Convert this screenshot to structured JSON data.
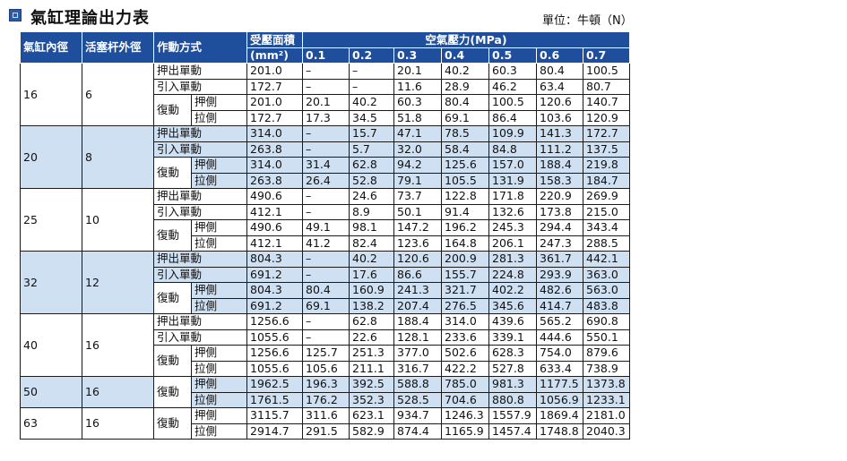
{
  "title": "氣缸理論出力表",
  "unit": "單位：牛頓（N）",
  "headers": {
    "bore": "氣缸內徑",
    "rod": "活塞杆外徑",
    "action": "作動方式",
    "area": "受壓面積",
    "area_unit": "(mm²)",
    "pressure": "空氣壓力(MPa)",
    "pressures": [
      "0.1",
      "0.2",
      "0.3",
      "0.4",
      "0.5",
      "0.6",
      "0.7"
    ]
  },
  "labels": {
    "push": "押出單動",
    "pull": "引入單動",
    "double": "復動",
    "push_side": "押側",
    "pull_side": "拉側"
  },
  "groups": [
    {
      "bore": "16",
      "rod": "6",
      "shade": false,
      "rows": [
        {
          "type": "push",
          "area": "201.0",
          "values": [
            "–",
            "–",
            "20.1",
            "40.2",
            "60.3",
            "80.4",
            "100.5"
          ]
        },
        {
          "type": "pull",
          "area": "172.7",
          "values": [
            "–",
            "–",
            "11.6",
            "28.9",
            "46.2",
            "63.4",
            "80.7"
          ]
        },
        {
          "type": "push_side",
          "area": "201.0",
          "values": [
            "20.1",
            "40.2",
            "60.3",
            "80.4",
            "100.5",
            "120.6",
            "140.7"
          ]
        },
        {
          "type": "pull_side",
          "area": "172.7",
          "values": [
            "17.3",
            "34.5",
            "51.8",
            "69.1",
            "86.4",
            "103.6",
            "120.9"
          ]
        }
      ]
    },
    {
      "bore": "20",
      "rod": "8",
      "shade": true,
      "rows": [
        {
          "type": "push",
          "area": "314.0",
          "values": [
            "–",
            "15.7",
            "47.1",
            "78.5",
            "109.9",
            "141.3",
            "172.7"
          ]
        },
        {
          "type": "pull",
          "area": "263.8",
          "values": [
            "–",
            "5.7",
            "32.0",
            "58.4",
            "84.8",
            "111.2",
            "137.5"
          ]
        },
        {
          "type": "push_side",
          "area": "314.0",
          "values": [
            "31.4",
            "62.8",
            "94.2",
            "125.6",
            "157.0",
            "188.4",
            "219.8"
          ]
        },
        {
          "type": "pull_side",
          "area": "263.8",
          "values": [
            "26.4",
            "52.8",
            "79.1",
            "105.5",
            "131.9",
            "158.3",
            "184.7"
          ]
        }
      ]
    },
    {
      "bore": "25",
      "rod": "10",
      "shade": false,
      "rows": [
        {
          "type": "push",
          "area": "490.6",
          "values": [
            "–",
            "24.6",
            "73.7",
            "122.8",
            "171.8",
            "220.9",
            "269.9"
          ]
        },
        {
          "type": "pull",
          "area": "412.1",
          "values": [
            "–",
            "8.9",
            "50.1",
            "91.4",
            "132.6",
            "173.8",
            "215.0"
          ]
        },
        {
          "type": "push_side",
          "area": "490.6",
          "values": [
            "49.1",
            "98.1",
            "147.2",
            "196.2",
            "245.3",
            "294.4",
            "343.4"
          ]
        },
        {
          "type": "pull_side",
          "area": "412.1",
          "values": [
            "41.2",
            "82.4",
            "123.6",
            "164.8",
            "206.1",
            "247.3",
            "288.5"
          ]
        }
      ]
    },
    {
      "bore": "32",
      "rod": "12",
      "shade": true,
      "rows": [
        {
          "type": "push",
          "area": "804.3",
          "values": [
            "–",
            "40.2",
            "120.6",
            "200.9",
            "281.3",
            "361.7",
            "442.1"
          ]
        },
        {
          "type": "pull",
          "area": "691.2",
          "values": [
            "–",
            "17.6",
            "86.6",
            "155.7",
            "224.8",
            "293.9",
            "363.0"
          ]
        },
        {
          "type": "push_side",
          "area": "804.3",
          "values": [
            "80.4",
            "160.9",
            "241.3",
            "321.7",
            "402.2",
            "482.6",
            "563.0"
          ]
        },
        {
          "type": "pull_side",
          "area": "691.2",
          "values": [
            "69.1",
            "138.2",
            "207.4",
            "276.5",
            "345.6",
            "414.7",
            "483.8"
          ]
        }
      ]
    },
    {
      "bore": "40",
      "rod": "16",
      "shade": false,
      "rows": [
        {
          "type": "push",
          "area": "1256.6",
          "values": [
            "–",
            "62.8",
            "188.4",
            "314.0",
            "439.6",
            "565.2",
            "690.8"
          ]
        },
        {
          "type": "pull",
          "area": "1055.6",
          "values": [
            "–",
            "22.6",
            "128.1",
            "233.6",
            "339.1",
            "444.6",
            "550.1"
          ]
        },
        {
          "type": "push_side",
          "area": "1256.6",
          "values": [
            "125.7",
            "251.3",
            "377.0",
            "502.6",
            "628.3",
            "754.0",
            "879.6"
          ]
        },
        {
          "type": "pull_side",
          "area": "1055.6",
          "values": [
            "105.6",
            "211.1",
            "316.7",
            "422.2",
            "527.8",
            "633.4",
            "738.9"
          ]
        }
      ]
    },
    {
      "bore": "50",
      "rod": "16",
      "shade": true,
      "rows": [
        {
          "type": "push_side",
          "area": "1962.5",
          "values": [
            "196.3",
            "392.5",
            "588.8",
            "785.0",
            "981.3",
            "1177.5",
            "1373.8"
          ]
        },
        {
          "type": "pull_side",
          "area": "1761.5",
          "values": [
            "176.2",
            "352.3",
            "528.5",
            "704.6",
            "880.8",
            "1056.9",
            "1233.1"
          ]
        }
      ]
    },
    {
      "bore": "63",
      "rod": "16",
      "shade": false,
      "rows": [
        {
          "type": "push_side",
          "area": "3115.7",
          "values": [
            "311.6",
            "623.1",
            "934.7",
            "1246.3",
            "1557.9",
            "1869.4",
            "2181.0"
          ]
        },
        {
          "type": "pull_side",
          "area": "2914.7",
          "values": [
            "291.5",
            "582.9",
            "874.4",
            "1165.9",
            "1457.4",
            "1748.8",
            "2040.3"
          ]
        }
      ]
    }
  ]
}
